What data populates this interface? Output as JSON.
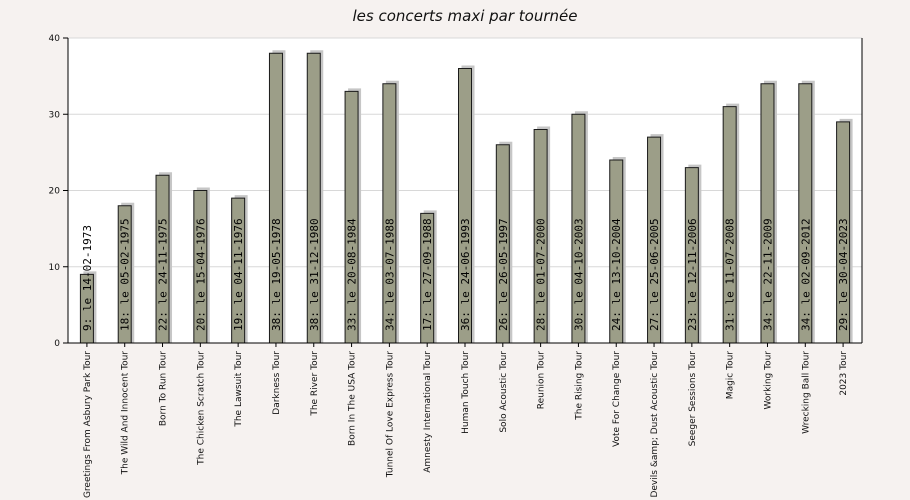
{
  "chart_data": {
    "type": "bar",
    "title": "les concerts maxi par tournée",
    "xlabel": "",
    "ylabel": "",
    "ylim": [
      0,
      40
    ],
    "yticks": [
      0,
      10,
      20,
      30,
      40
    ],
    "grid": true,
    "categories": [
      "Greetings From Asbury Park Tour",
      "The Wild And Innocent Tour",
      "Born To Run Tour",
      "The Chicken Scratch Tour",
      "The Lawsuit Tour",
      "Darkness Tour",
      "The River Tour",
      "Born In The USA Tour",
      "Tunnel Of Love Express Tour",
      "Amnesty International Tour",
      "Human Touch Tour",
      "Solo Acoustic Tour",
      "Reunion Tour",
      "The Rising Tour",
      "Vote For Change Tour",
      "Devils &amp; Dust Acoustic Tour",
      "Seeger Sessions Tour",
      "Magic Tour",
      "Working Tour",
      "Wrecking Ball Tour",
      "2023 Tour"
    ],
    "values": [
      9,
      18,
      22,
      20,
      19,
      38,
      38,
      33,
      34,
      17,
      36,
      26,
      28,
      30,
      24,
      27,
      23,
      31,
      34,
      34,
      29
    ],
    "data_labels": [
      "9: le 14-02-1973",
      "18: le 05-02-1975",
      "22: le 24-11-1975",
      "20: le 15-04-1976",
      "19: le 04-11-1976",
      "38: le 19-05-1978",
      "38: le 31-12-1980",
      "33: le 20-08-1984",
      "34: le 03-07-1988",
      "17: le 27-09-1988",
      "36: le 24-06-1993",
      "26: le 26-05-1997",
      "28: le 01-07-2000",
      "30: le 04-10-2003",
      "24: le 13-10-2004",
      "27: le 25-06-2005",
      "23: le 12-11-2006",
      "31: le 11-07-2008",
      "34: le 22-11-2009",
      "34: le 02-09-2012",
      "29: le 30-04-2023"
    ],
    "colors": {
      "bar": "#9c9e88",
      "bar_outline": "#1a1a1a",
      "bar_shadow": "#c6c6c6",
      "grid": "#d8d8d8",
      "plot_bg": "#ffffff",
      "page_bg": "#f6f2f0"
    }
  }
}
